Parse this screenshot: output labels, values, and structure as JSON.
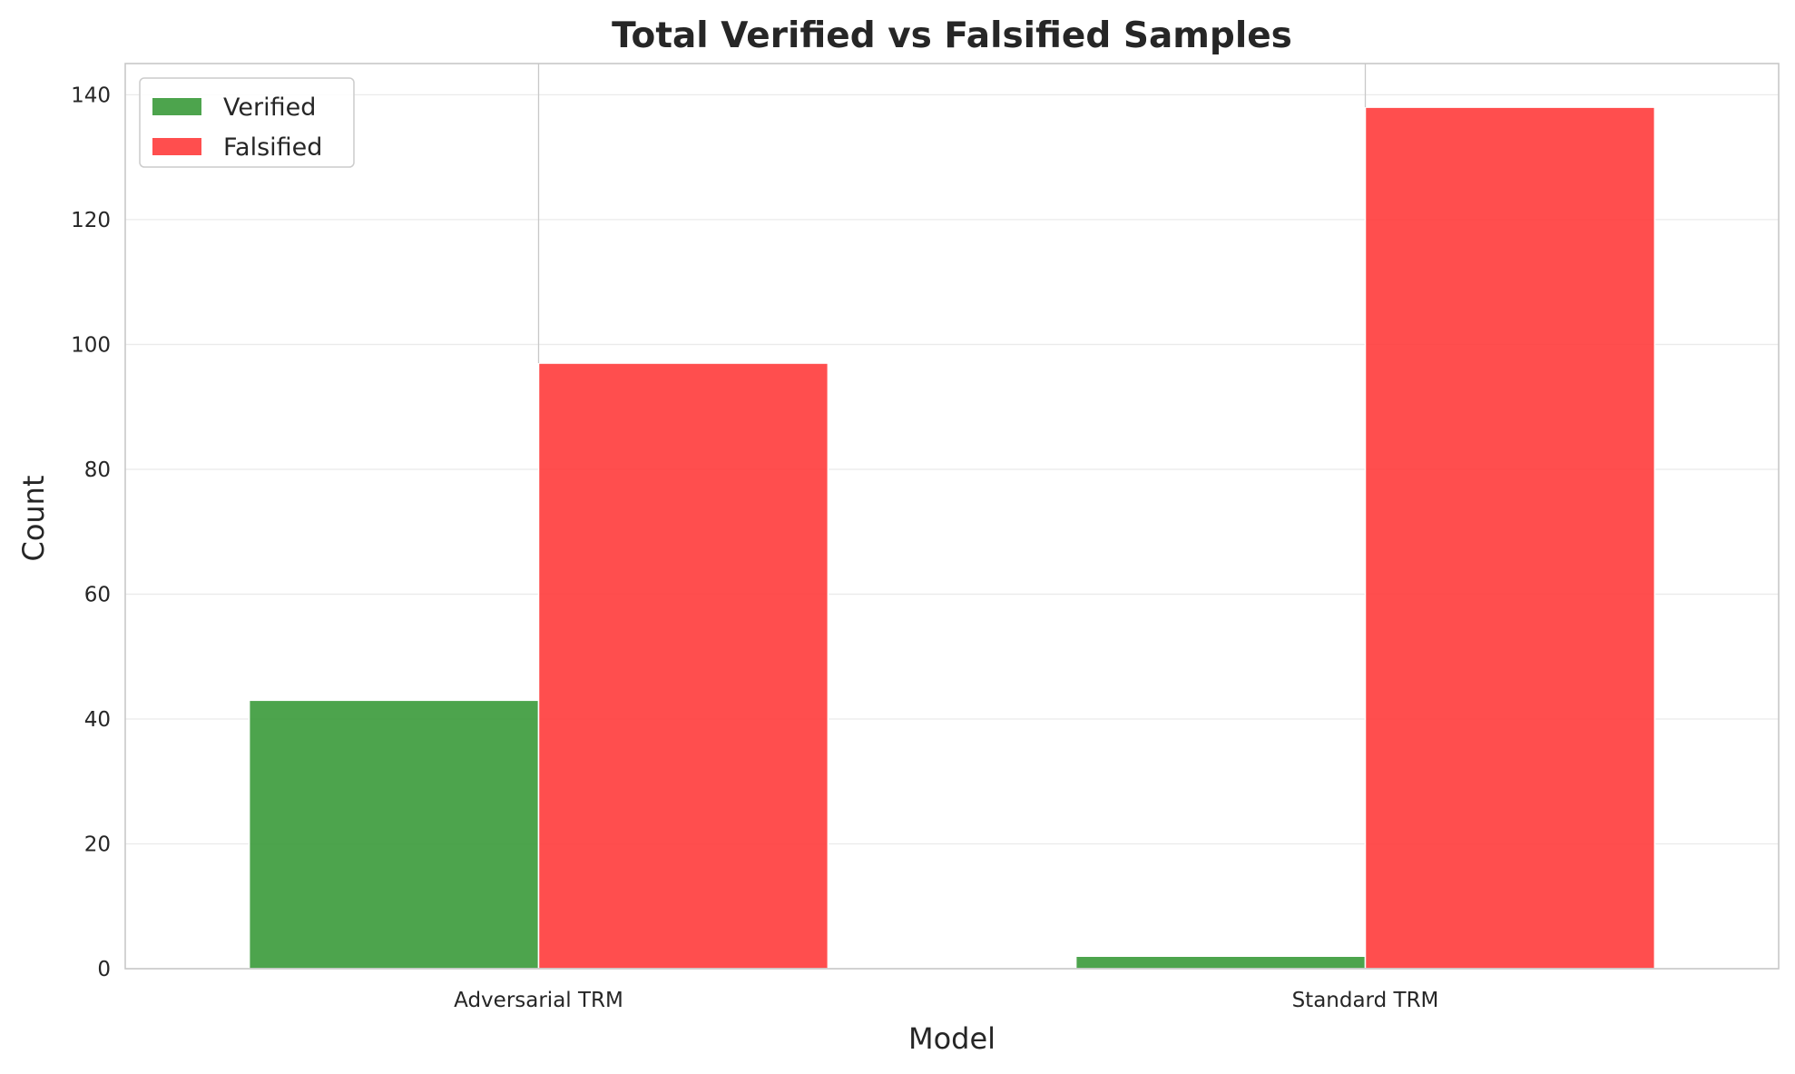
{
  "chart_data": {
    "type": "bar",
    "title": "Total Verified vs Falsified Samples",
    "xlabel": "Model",
    "ylabel": "Count",
    "categories": [
      "Adversarial TRM",
      "Standard TRM"
    ],
    "series": [
      {
        "name": "Verified",
        "values": [
          43,
          2
        ],
        "color": "#3a9a3a"
      },
      {
        "name": "Falsified",
        "values": [
          97,
          138
        ],
        "color": "#ff3b3b"
      }
    ],
    "ylim": [
      0,
      145
    ],
    "yticks": [
      0,
      20,
      40,
      60,
      80,
      100,
      120,
      140
    ],
    "grid": "y",
    "legend_position": "top-left",
    "colors": {
      "axes_edge": "#c8c8c8",
      "grid": "#ebebeb",
      "text": "#262626"
    }
  }
}
